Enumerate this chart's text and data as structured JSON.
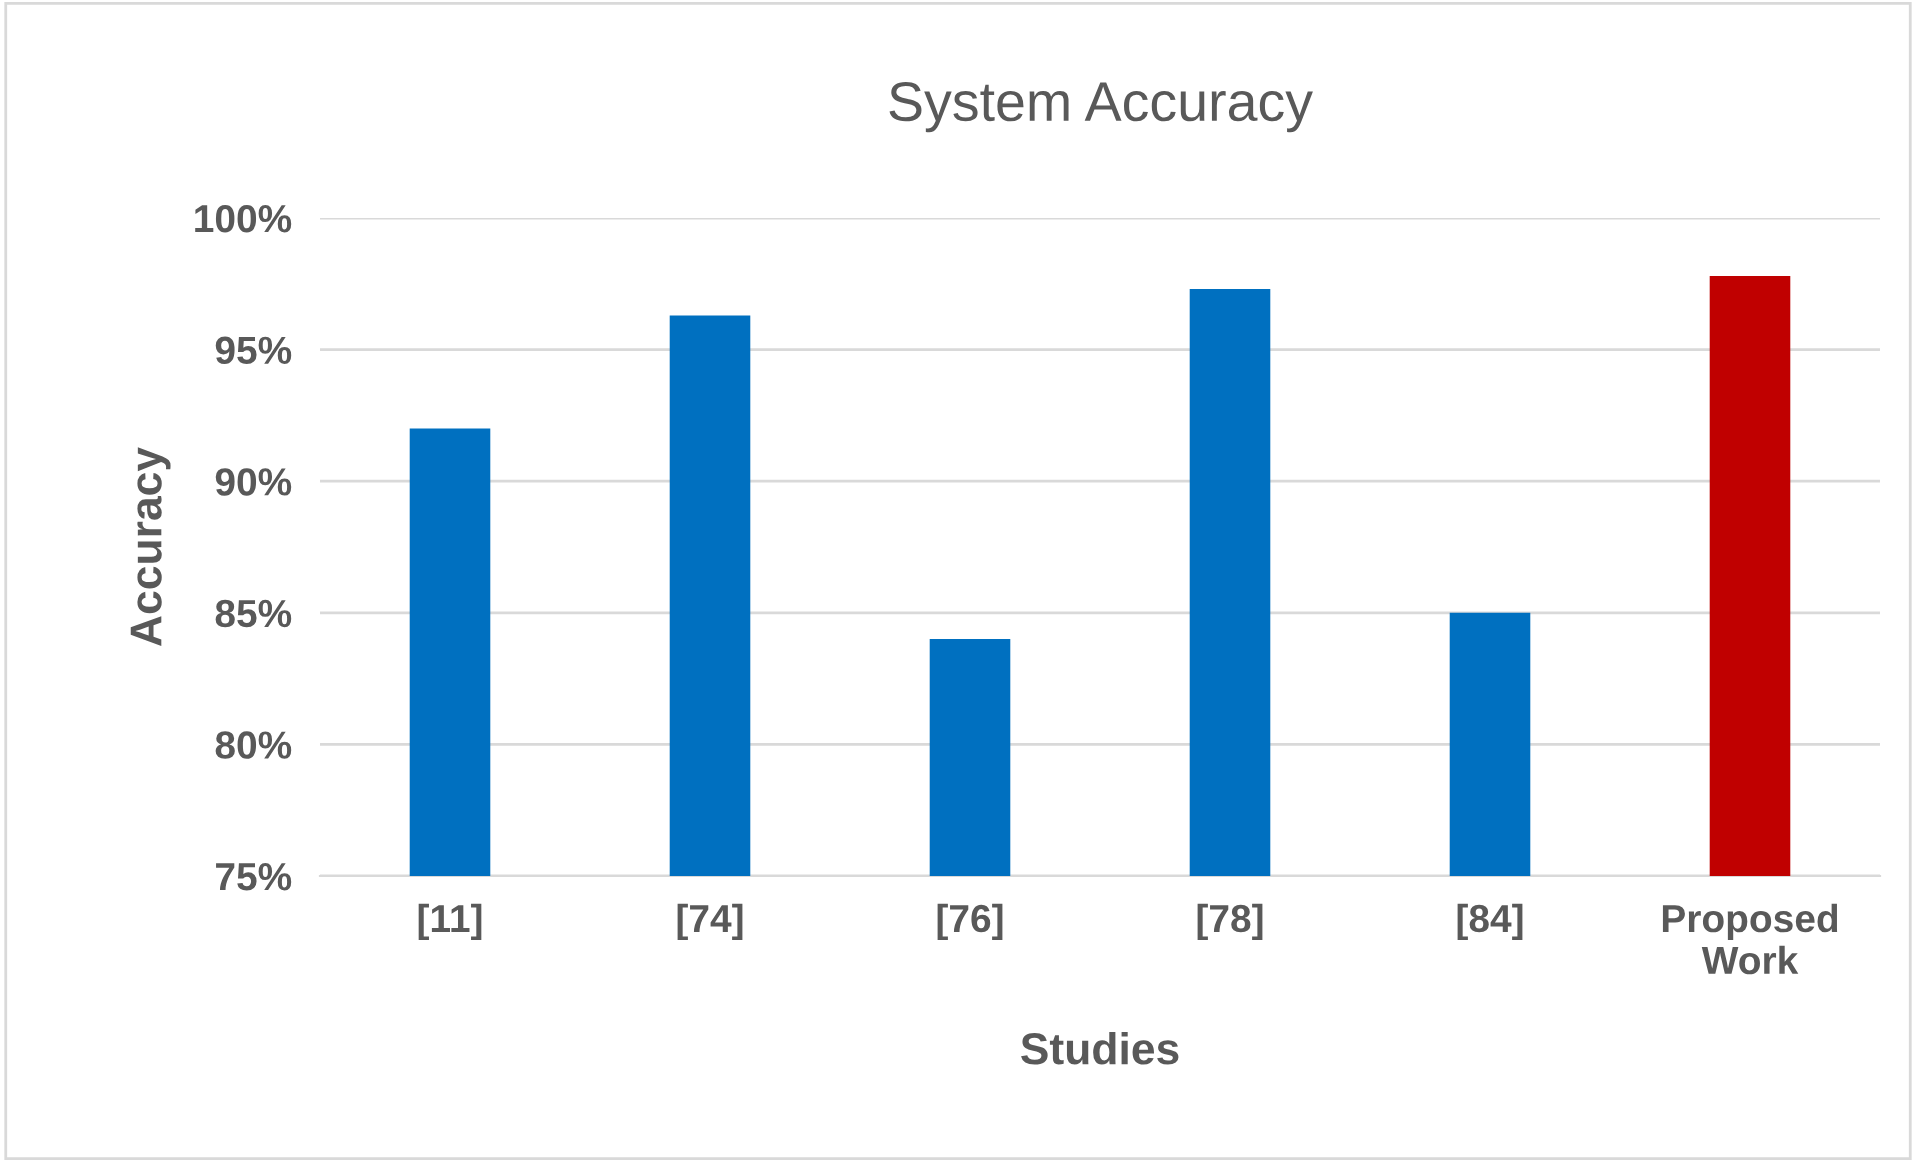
{
  "chart_data": {
    "type": "bar",
    "title": "System Accuracy",
    "xlabel": "Studies",
    "ylabel": "Accuracy",
    "categories": [
      "[11]",
      "[74]",
      "[76]",
      "[78]",
      "[84]",
      "Proposed Work"
    ],
    "values": [
      92.0,
      96.3,
      84.0,
      97.3,
      85.0,
      97.8
    ],
    "colors": [
      "#0070c0",
      "#0070c0",
      "#0070c0",
      "#0070c0",
      "#0070c0",
      "#c00000"
    ],
    "ylim": [
      75,
      100
    ],
    "yticks": [
      {
        "value": 75,
        "label": "75%"
      },
      {
        "value": 80,
        "label": "80%"
      },
      {
        "value": 85,
        "label": "85%"
      },
      {
        "value": 90,
        "label": "90%"
      },
      {
        "value": 95,
        "label": "95%"
      },
      {
        "value": 100,
        "label": "100%"
      }
    ],
    "grid": "y"
  }
}
